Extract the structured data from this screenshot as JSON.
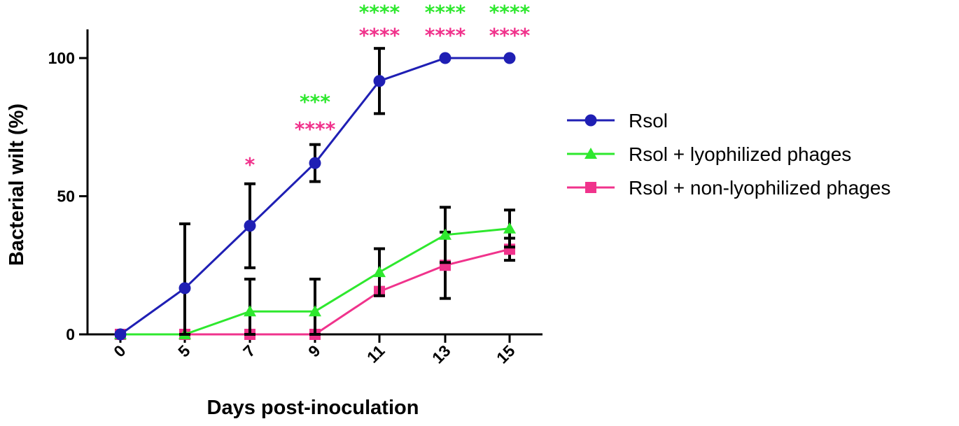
{
  "chart_data": {
    "type": "line",
    "title": "",
    "xlabel": "Days post-inoculation",
    "ylabel": "Bacterial wilt (%)",
    "categories": [
      "0",
      "5",
      "7",
      "9",
      "11",
      "13",
      "15"
    ],
    "ylim": [
      0,
      110
    ],
    "yticks": [
      0,
      50,
      100
    ],
    "grid": false,
    "legend_position": "right",
    "series": [
      {
        "name": "Rsol",
        "color": "#1f1fb4",
        "marker": "circle",
        "values": [
          0,
          16.7,
          39.3,
          62,
          91.7,
          100,
          100
        ],
        "error": [
          0,
          23.3,
          15.2,
          6.7,
          11.8,
          0,
          0
        ]
      },
      {
        "name": "Rsol + lyophilized phages",
        "color": "#2ee82e",
        "marker": "triangle",
        "values": [
          0,
          0,
          8.3,
          8.3,
          22.5,
          36,
          38.3
        ],
        "error": [
          0,
          0,
          11.7,
          11.7,
          8.5,
          10,
          6.7
        ]
      },
      {
        "name": "Rsol + non-lyophilized phages",
        "color": "#f0338c",
        "marker": "square",
        "values": [
          0,
          0,
          0,
          0,
          15.5,
          25,
          30.8
        ],
        "error": [
          0,
          0,
          0,
          0,
          1.5,
          12,
          4
        ]
      }
    ],
    "annotations": [
      {
        "category": "7",
        "series": "Rsol + non-lyophilized phages",
        "text": "*"
      },
      {
        "category": "9",
        "series": "Rsol + lyophilized phages",
        "text": "***"
      },
      {
        "category": "9",
        "series": "Rsol + non-lyophilized phages",
        "text": "****"
      },
      {
        "category": "11",
        "series": "Rsol + lyophilized phages",
        "text": "****"
      },
      {
        "category": "11",
        "series": "Rsol + non-lyophilized phages",
        "text": "****"
      },
      {
        "category": "13",
        "series": "Rsol + lyophilized phages",
        "text": "****"
      },
      {
        "category": "13",
        "series": "Rsol + non-lyophilized phages",
        "text": "****"
      },
      {
        "category": "15",
        "series": "Rsol + lyophilized phages",
        "text": "****"
      },
      {
        "category": "15",
        "series": "Rsol + non-lyophilized phages",
        "text": "****"
      }
    ]
  }
}
